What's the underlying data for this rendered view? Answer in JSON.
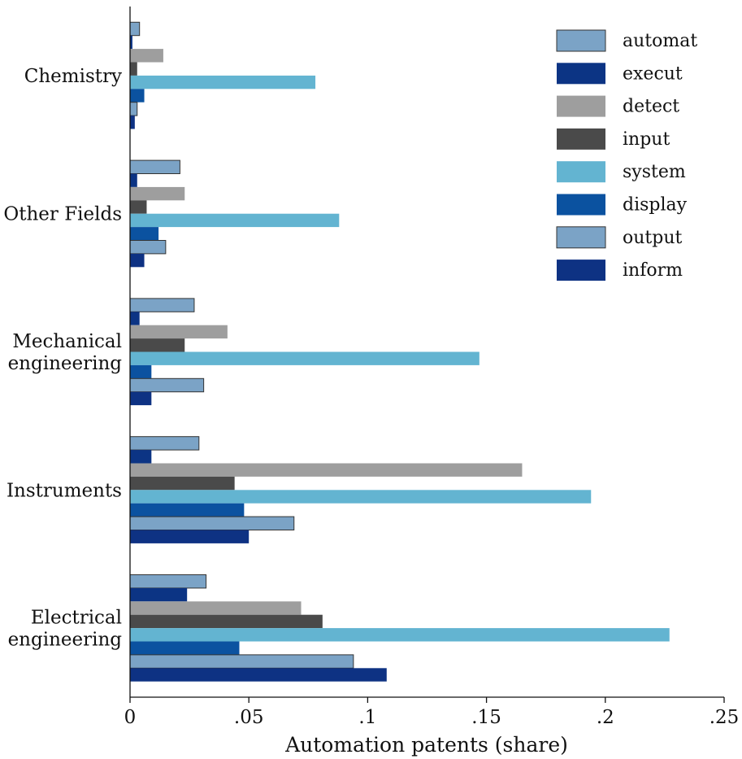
{
  "chart_data": {
    "type": "bar",
    "orientation": "horizontal",
    "title": "",
    "xlabel": "Automation patents (share)",
    "ylabel": "",
    "xlim": [
      0,
      0.25
    ],
    "xticks": [
      0,
      0.05,
      0.1,
      0.15,
      0.2,
      0.25
    ],
    "xtick_labels": [
      "0",
      ".05",
      ".1",
      ".15",
      ".2",
      ".25"
    ],
    "grid": false,
    "legend_position": "top-right",
    "categories": [
      [
        "Chemistry"
      ],
      [
        "Other Fields"
      ],
      [
        "Mechanical",
        "engineering"
      ],
      [
        "Instruments"
      ],
      [
        "Electrical",
        "engineering"
      ]
    ],
    "series": [
      {
        "name": "automat",
        "color": "#7ba3c6",
        "outlined": true,
        "values": [
          0.004,
          0.021,
          0.027,
          0.029,
          0.032
        ]
      },
      {
        "name": "execut",
        "color": "#0c3484",
        "outlined": false,
        "values": [
          0.001,
          0.003,
          0.004,
          0.009,
          0.024
        ]
      },
      {
        "name": "detect",
        "color": "#9e9e9e",
        "outlined": false,
        "values": [
          0.014,
          0.023,
          0.041,
          0.165,
          0.072
        ]
      },
      {
        "name": "input",
        "color": "#4a4a4a",
        "outlined": false,
        "values": [
          0.003,
          0.007,
          0.023,
          0.044,
          0.081
        ]
      },
      {
        "name": "system",
        "color": "#63b4d1",
        "outlined": false,
        "values": [
          0.078,
          0.088,
          0.147,
          0.194,
          0.227
        ]
      },
      {
        "name": "display",
        "color": "#0b52a0",
        "outlined": false,
        "values": [
          0.006,
          0.012,
          0.009,
          0.048,
          0.046
        ]
      },
      {
        "name": "output",
        "color": "#7ba3c6",
        "outlined": true,
        "values": [
          0.003,
          0.015,
          0.031,
          0.069,
          0.094
        ]
      },
      {
        "name": "inform",
        "color": "#0e3283",
        "outlined": false,
        "values": [
          0.002,
          0.006,
          0.009,
          0.05,
          0.108
        ]
      }
    ]
  }
}
